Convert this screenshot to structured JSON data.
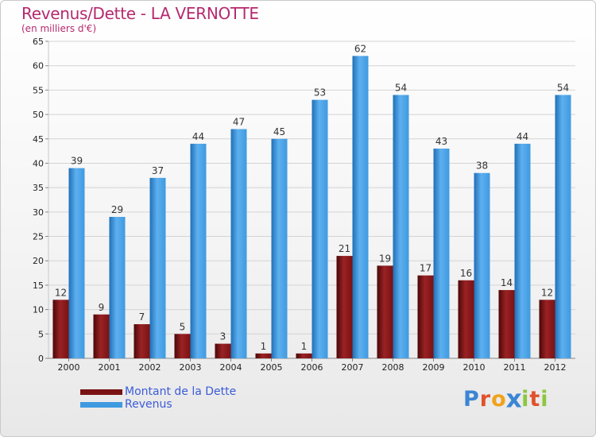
{
  "chart_data": {
    "type": "bar",
    "title": "Revenus/Dette - LA VERNOTTE",
    "subtitle": "(en milliers d'€)",
    "xlabel": "",
    "ylabel": "",
    "categories": [
      "2000",
      "2001",
      "2002",
      "2003",
      "2004",
      "2005",
      "2006",
      "2007",
      "2008",
      "2009",
      "2010",
      "2011",
      "2012"
    ],
    "series": [
      {
        "name": "Montant de la Dette",
        "color": "#7a1214",
        "values": [
          12,
          9,
          7,
          5,
          3,
          1,
          1,
          21,
          19,
          17,
          16,
          14,
          12
        ]
      },
      {
        "name": "Revenus",
        "color": "#3f9ae0",
        "values": [
          39,
          29,
          37,
          44,
          47,
          45,
          53,
          62,
          54,
          43,
          38,
          44,
          54
        ]
      }
    ],
    "ylim": [
      0,
      65
    ],
    "yticks": [
      0,
      5,
      10,
      15,
      20,
      25,
      30,
      35,
      40,
      45,
      50,
      55,
      60,
      65
    ],
    "grid": true,
    "legend": "bottom-left"
  },
  "logo": {
    "letters": [
      "P",
      "r",
      "o",
      "x",
      "i",
      "t",
      "i"
    ],
    "colors": [
      "#3a86d4",
      "#e0522b",
      "#f0a21b",
      "#3a86d4",
      "#8cc63f",
      "#e0522b",
      "#8cc63f"
    ]
  }
}
